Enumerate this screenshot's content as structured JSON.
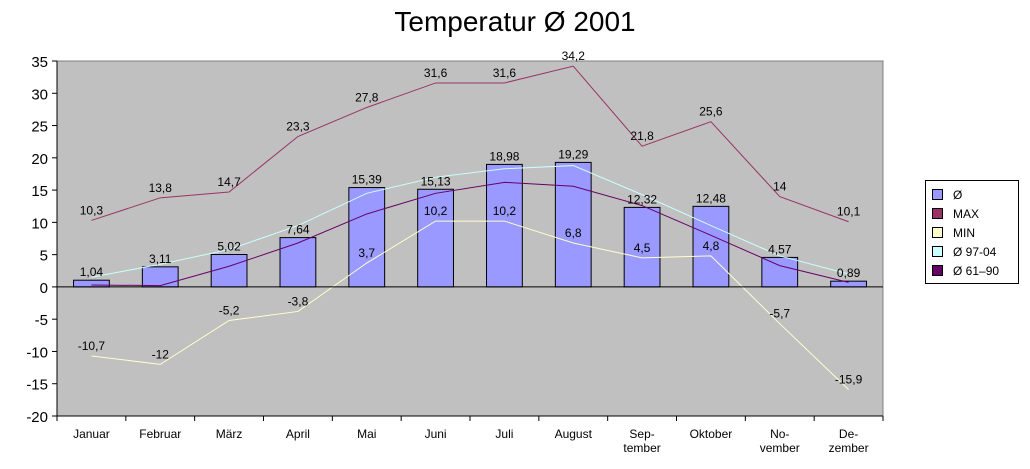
{
  "chart_data": {
    "type": "bar",
    "title": "Temperatur Ø 2001",
    "xlabel": "",
    "ylabel": "",
    "ylim": [
      -20,
      35
    ],
    "yticks": [
      "35",
      "30",
      "25",
      "20",
      "15",
      "10",
      "5",
      "0",
      "-5",
      "-10",
      "-15",
      "-20"
    ],
    "grid": false,
    "legend_position": "right",
    "plot_background": "#c0c0c0",
    "categories": [
      [
        "Januar"
      ],
      [
        "Februar"
      ],
      [
        "März"
      ],
      [
        "April"
      ],
      [
        "Mai"
      ],
      [
        "Juni"
      ],
      [
        "Juli"
      ],
      [
        "August"
      ],
      [
        "Sep-",
        "tember"
      ],
      [
        "Oktober"
      ],
      [
        "No-",
        "vember"
      ],
      [
        "De-",
        "zember"
      ]
    ],
    "series": [
      {
        "name": "Ø",
        "kind": "bar",
        "color": "#9999ff",
        "values": [
          1.04,
          3.11,
          5.02,
          7.64,
          15.39,
          15.13,
          18.98,
          19.29,
          12.32,
          12.48,
          4.57,
          0.89
        ],
        "labels": [
          "1,04",
          "3,11",
          "5,02",
          "7,64",
          "15,39",
          "15,13",
          "18,98",
          "19,29",
          "12,32",
          "12,48",
          "4,57",
          "0,89"
        ]
      },
      {
        "name": "MAX",
        "kind": "line",
        "color": "#993366",
        "values": [
          10.3,
          13.8,
          14.7,
          23.3,
          27.8,
          31.6,
          31.6,
          34.2,
          21.8,
          25.6,
          14,
          10.1
        ],
        "labels": [
          "10,3",
          "13,8",
          "14,7",
          "23,3",
          "27,8",
          "31,6",
          "31,6",
          "34,2",
          "21,8",
          "25,6",
          "14",
          "10,1"
        ]
      },
      {
        "name": "MIN",
        "kind": "line",
        "color": "#ffffcc",
        "values": [
          -10.7,
          -12,
          -5.2,
          -3.8,
          3.7,
          10.2,
          10.2,
          6.8,
          4.5,
          4.8,
          -5.7,
          -15.9
        ],
        "labels": [
          "-10,7",
          "-12",
          "-5,2",
          "-3,8",
          "3,7",
          "10,2",
          "10,2",
          "6,8",
          "4,5",
          "4,8",
          "-5,7",
          "-15,9"
        ]
      },
      {
        "name": "Ø 97-04",
        "kind": "line",
        "color": "#ccffff",
        "values": [
          1.5,
          3.5,
          5.8,
          9.5,
          14.5,
          17.0,
          18.3,
          18.8,
          14.3,
          9.5,
          4.8,
          2.0
        ],
        "labels": []
      },
      {
        "name": "Ø 61–90",
        "kind": "line",
        "color": "#660066",
        "values": [
          0.3,
          0.2,
          3.2,
          6.8,
          11.3,
          14.5,
          16.2,
          15.6,
          12.6,
          8.0,
          3.3,
          0.7
        ],
        "labels": []
      }
    ]
  }
}
